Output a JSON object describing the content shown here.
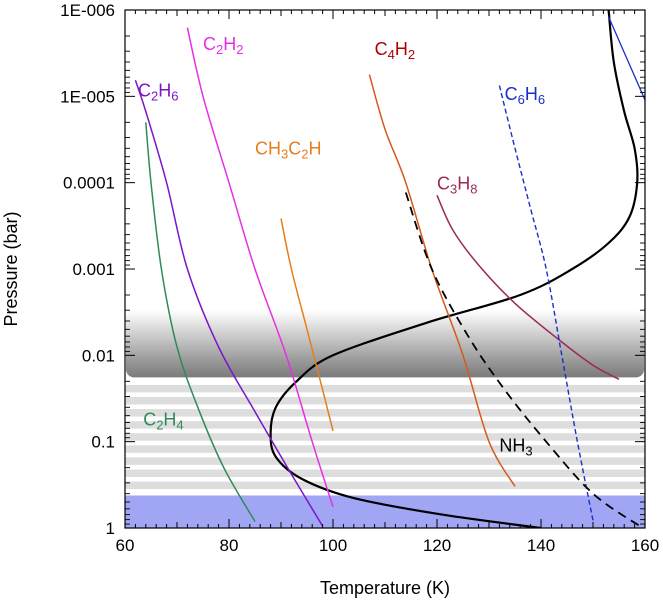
{
  "chart_data": {
    "type": "line",
    "title": "",
    "xlabel": "Temperature (K)",
    "ylabel": "Pressure (bar)",
    "xlim": [
      60,
      160
    ],
    "ylim": [
      1e-06,
      1
    ],
    "y_scale": "log",
    "y_inverted": true,
    "x_ticks": [
      60,
      80,
      100,
      120,
      140,
      160
    ],
    "y_ticks": [
      {
        "value": 1e-06,
        "label": "1E-006"
      },
      {
        "value": 1e-05,
        "label": "1E-005"
      },
      {
        "value": 0.0001,
        "label": "0.0001"
      },
      {
        "value": 0.001,
        "label": "0.001"
      },
      {
        "value": 0.01,
        "label": "0.01"
      },
      {
        "value": 0.1,
        "label": "0.1"
      },
      {
        "value": 1,
        "label": "1"
      }
    ],
    "grid": false,
    "series": [
      {
        "id": "tp",
        "color": "#000000",
        "dash": "none",
        "width": 2.2,
        "points": [
          [
            153,
            1e-06
          ],
          [
            154,
            4e-06
          ],
          [
            156,
            1.5e-05
          ],
          [
            158,
            4e-05
          ],
          [
            158.5,
            0.0001
          ],
          [
            157,
            0.00025
          ],
          [
            153,
            0.0005
          ],
          [
            146,
            0.001
          ],
          [
            136,
            0.002
          ],
          [
            118,
            0.0042
          ],
          [
            100,
            0.01
          ],
          [
            93,
            0.02
          ],
          [
            89,
            0.04
          ],
          [
            88,
            0.08
          ],
          [
            89,
            0.15
          ],
          [
            94,
            0.27
          ],
          [
            104,
            0.45
          ],
          [
            121,
            0.7
          ],
          [
            140,
            1
          ]
        ]
      },
      {
        "id": "c2h4",
        "name": "C",
        "color": "#2e8b57",
        "dash": "none",
        "width": 1.5,
        "points": [
          [
            64,
            2e-05
          ],
          [
            65,
            0.0001
          ],
          [
            67,
            0.001
          ],
          [
            70,
            0.008
          ],
          [
            74,
            0.04
          ],
          [
            79,
            0.2
          ],
          [
            85,
            0.84
          ]
        ]
      },
      {
        "id": "c2h6",
        "name": "C",
        "color": "#7b16c8",
        "dash": "none",
        "width": 1.5,
        "points": [
          [
            62,
            6.5e-06
          ],
          [
            64,
            1.5e-05
          ],
          [
            68,
            0.0001
          ],
          [
            72,
            0.001
          ],
          [
            78,
            0.008
          ],
          [
            85,
            0.045
          ],
          [
            93,
            0.3
          ],
          [
            98,
            0.95
          ]
        ]
      },
      {
        "id": "c2h2",
        "name": "C",
        "color": "#e62fe6",
        "dash": "none",
        "width": 1.5,
        "points": [
          [
            72,
            1.6e-06
          ],
          [
            75,
            1e-05
          ],
          [
            80,
            0.0001
          ],
          [
            85,
            0.001
          ],
          [
            91,
            0.01
          ],
          [
            96,
            0.1
          ],
          [
            100,
            0.57
          ]
        ]
      },
      {
        "id": "ch3c2h",
        "name": "CH",
        "color": "#e87d1e",
        "dash": "none",
        "width": 1.5,
        "points": [
          [
            90,
            0.00026
          ],
          [
            92,
            0.001
          ],
          [
            95,
            0.005
          ],
          [
            98,
            0.025
          ],
          [
            100,
            0.075
          ]
        ]
      },
      {
        "id": "c4h2",
        "name": "C",
        "color": "#d25a1e",
        "dash": "none",
        "width": 1.5,
        "points": [
          [
            107,
            5.6e-06
          ],
          [
            110,
            2.4e-05
          ],
          [
            114,
            0.0001
          ],
          [
            119,
            0.001
          ],
          [
            125,
            0.01
          ],
          [
            130,
            0.1
          ],
          [
            135,
            0.33
          ]
        ]
      },
      {
        "id": "c3h8",
        "name": "C",
        "color": "#9b2a58",
        "dash": "none",
        "width": 1.5,
        "points": [
          [
            120,
            0.00014
          ],
          [
            123,
            0.00035
          ],
          [
            128,
            0.0009
          ],
          [
            135,
            0.0025
          ],
          [
            144,
            0.007
          ],
          [
            150,
            0.013
          ],
          [
            155,
            0.019
          ]
        ]
      },
      {
        "id": "c6h6",
        "name": "C",
        "color": "#1a2ec8",
        "dash": "5,3",
        "width": 1.4,
        "points": [
          [
            132,
            7.5e-06
          ],
          [
            135,
            4e-05
          ],
          [
            138,
            0.0002
          ],
          [
            141,
            0.001
          ],
          [
            144,
            0.01
          ],
          [
            147,
            0.1
          ],
          [
            150,
            0.82
          ]
        ]
      },
      {
        "id": "nh3",
        "name": "NH",
        "color": "#000000",
        "dash": "9,6",
        "width": 1.8,
        "points": [
          [
            114,
            0.00013
          ],
          [
            119,
            0.001
          ],
          [
            126,
            0.006
          ],
          [
            133,
            0.025
          ],
          [
            141,
            0.1
          ],
          [
            150,
            0.4
          ],
          [
            159,
            0.95
          ]
        ]
      },
      {
        "id": "top_right_blue",
        "color": "#1a2ec8",
        "dash": "none",
        "width": 1.3,
        "points": [
          [
            153,
            1.2e-06
          ],
          [
            160,
            1.1e-05
          ]
        ]
      }
    ],
    "labels": [
      {
        "series": "c2h4",
        "main": "C",
        "sub1": "2",
        "mid": "H",
        "sub2": "4",
        "color": "#2e8b57",
        "x": 63.5,
        "y": 0.065
      },
      {
        "series": "c2h6",
        "main": "C",
        "sub1": "2",
        "mid": "H",
        "sub2": "6",
        "color": "#7b16c8",
        "x": 62.5,
        "y": 1e-05
      },
      {
        "series": "c2h2",
        "main": "C",
        "sub1": "2",
        "mid": "H",
        "sub2": "2",
        "color": "#e62fe6",
        "x": 75,
        "y": 2.9e-06
      },
      {
        "series": "ch3c2h",
        "main": "CH",
        "sub1": "3",
        "mid": "C",
        "sub2": "2",
        "tail": "H",
        "color": "#e87d1e",
        "x": 85,
        "y": 4.7e-05
      },
      {
        "series": "c4h2",
        "main": "C",
        "sub1": "4",
        "mid": "H",
        "sub2": "2",
        "color": "#b00000",
        "x": 108,
        "y": 3.3e-06
      },
      {
        "series": "c6h6",
        "main": "C",
        "sub1": "6",
        "mid": "H",
        "sub2": "6",
        "color": "#1a2ec8",
        "x": 133,
        "y": 1.1e-05
      },
      {
        "series": "c3h8",
        "main": "C",
        "sub1": "3",
        "mid": "H",
        "sub2": "8",
        "color": "#9b2a58",
        "x": 120,
        "y": 0.00012
      },
      {
        "series": "nh3",
        "main": "NH",
        "sub1": "3",
        "color": "#000000",
        "x": 132,
        "y": 0.13
      }
    ],
    "cloud_band": {
      "p_top": 0.003,
      "p_bottom": 0.018,
      "color": "#808080"
    },
    "haze_stripes": {
      "p_top": 0.022,
      "p_bottom": 0.4,
      "count": 9,
      "color": "#dddddd"
    },
    "deep_band": {
      "p_top": 0.42,
      "p_bottom": 1,
      "color": "#a0a6f4"
    }
  }
}
